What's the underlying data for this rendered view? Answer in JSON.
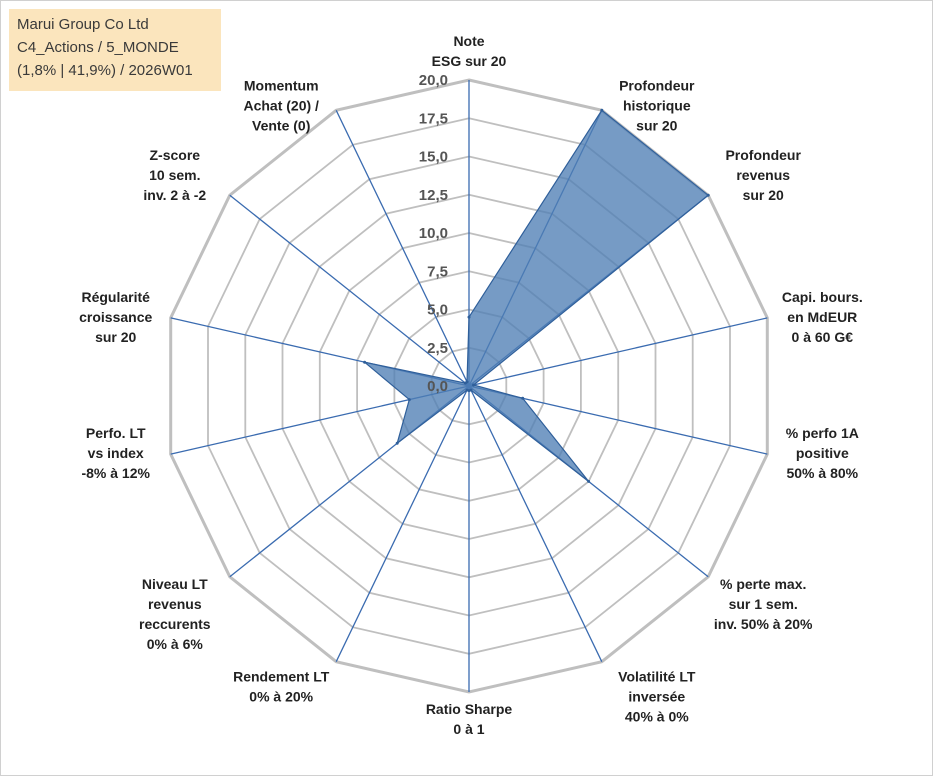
{
  "info": {
    "company": "Marui Group Co Ltd",
    "category": "C4_Actions / 5_MONDE",
    "stats": "(1,8% | 41,9%) / 2026W01"
  },
  "colors": {
    "fill": "#4f7fb5",
    "stroke": "#2f5f9a",
    "grid": "#bfbfbf",
    "spoke": "#3a6bb0"
  },
  "chart_data": {
    "type": "radar",
    "title": "",
    "rmin": 0,
    "rmax": 20,
    "tick_step": 2.5,
    "tick_labels": [
      "0,0",
      "2,5",
      "5,0",
      "7,5",
      "10,0",
      "12,5",
      "15,0",
      "17,5",
      "20,0"
    ],
    "axes": [
      {
        "label": [
          "Note",
          "ESG sur 20"
        ],
        "value": 4.5
      },
      {
        "label": [
          "Profondeur",
          "historique",
          "sur 20"
        ],
        "value": 20
      },
      {
        "label": [
          "Profondeur",
          "revenus",
          "sur 20"
        ],
        "value": 20
      },
      {
        "label": [
          "Capi. bours.",
          "en MdEUR",
          "0 à 60 G€"
        ],
        "value": 0.3
      },
      {
        "label": [
          "% perfo 1A",
          "positive",
          "50% à 80%"
        ],
        "value": 3.6
      },
      {
        "label": [
          "% perte max.",
          "sur 1 sem.",
          "inv. 50% à 20%"
        ],
        "value": 10
      },
      {
        "label": [
          "Volatilité LT",
          "inversée",
          "40% à 0%"
        ],
        "value": 0.3
      },
      {
        "label": [
          "Ratio Sharpe",
          "0 à 1"
        ],
        "value": 0.3
      },
      {
        "label": [
          "Rendement LT",
          "0% à 20%"
        ],
        "value": 0.3
      },
      {
        "label": [
          "Niveau LT",
          "revenus",
          "reccurents",
          "0% à 6%"
        ],
        "value": 6
      },
      {
        "label": [
          "Perfo. LT",
          "vs index",
          "-8% à 12%"
        ],
        "value": 4
      },
      {
        "label": [
          "Régularité",
          "croissance",
          "sur 20"
        ],
        "value": 7
      },
      {
        "label": [
          "Z-score",
          "10 sem.",
          "inv. 2 à -2"
        ],
        "value": 0.3
      },
      {
        "label": [
          "Momentum",
          "Achat (20) /",
          "Vente (0)"
        ],
        "value": 0.3
      }
    ]
  }
}
